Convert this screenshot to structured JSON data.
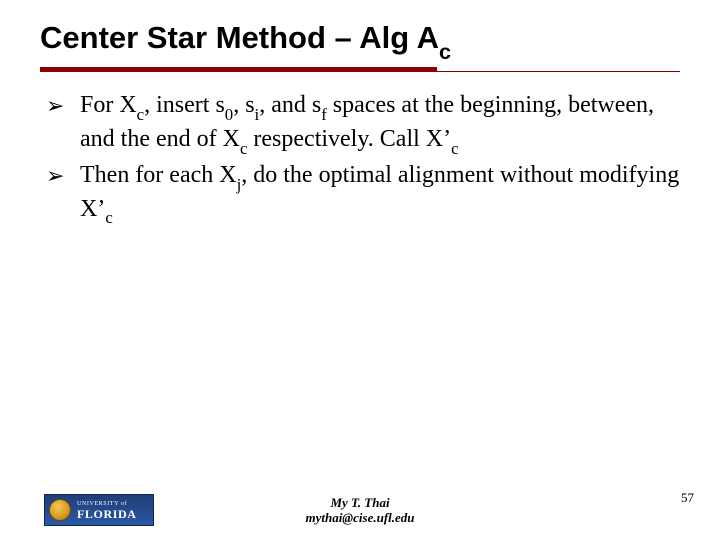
{
  "title": {
    "prefix": "Center Star Method – Alg ",
    "A": "A",
    "Csub": "c"
  },
  "bullets": [
    {
      "marker": "➢",
      "runs": [
        {
          "t": "For X"
        },
        {
          "t": "c",
          "sub": true
        },
        {
          "t": ", insert s"
        },
        {
          "t": "0",
          "sub": true
        },
        {
          "t": ", s"
        },
        {
          "t": "i",
          "sub": true
        },
        {
          "t": ", and s"
        },
        {
          "t": "f",
          "sub": true
        },
        {
          "t": " spaces at the beginning, between, and the end of X"
        },
        {
          "t": "c",
          "sub": true
        },
        {
          "t": " respectively. Call X’"
        },
        {
          "t": "c",
          "sub": true
        }
      ]
    },
    {
      "marker": "➢",
      "runs": [
        {
          "t": "Then for each X"
        },
        {
          "t": "j",
          "sub": true
        },
        {
          "t": ", do the optimal alignment without modifying X’"
        },
        {
          "t": "c",
          "sub": true
        }
      ]
    }
  ],
  "logo": {
    "line1": "UNIVERSITY of",
    "line2": "FLORIDA"
  },
  "author": {
    "name": "My T. Thai",
    "email": "mythai@cise.ufl.edu"
  },
  "page": "57",
  "colors": {
    "rule": "#8b0000"
  }
}
